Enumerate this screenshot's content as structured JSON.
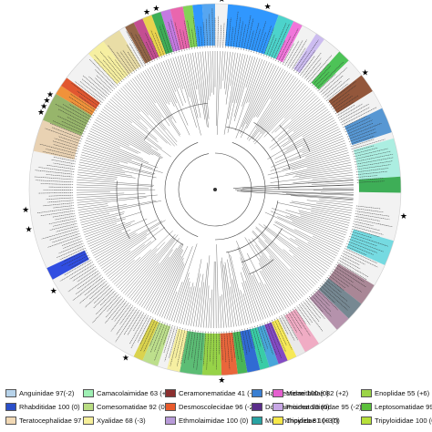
{
  "legend": [
    {
      "label": "Anguinidae 97(-2)",
      "color": "#b7d3ea"
    },
    {
      "label": "Rhabditidae 100 (0)",
      "color": "#2b4fc9"
    },
    {
      "label": "Teratocephalidae 97 (0)",
      "color": "#f2d9b5"
    },
    {
      "label": "Camacolaimidae 63 (+3)",
      "color": "#9ff0b4"
    },
    {
      "label": "Comesomatidae 92 (0)",
      "color": "#b9dd83"
    },
    {
      "label": "Xyalidae 68 (-3)",
      "color": "#f6ef9a"
    },
    {
      "label": "Ceramonematidae 41 (-23)",
      "color": "#8b2f2f"
    },
    {
      "label": "Desmoscolecidae 96 (-2)",
      "color": "#e85a2b"
    },
    {
      "label": "Ethmolaimidae 100 (0)",
      "color": "#b89bd9"
    },
    {
      "label": "Haliplectidae 100 (0)",
      "color": "#3a7fd2"
    },
    {
      "label": "Dorylaimoidea 99 (0)",
      "color": "#5a2d8a"
    },
    {
      "label": "Mononchoidea 81 (+37)",
      "color": "#29a3a3"
    },
    {
      "label": "Mermithidae 82 (+2)",
      "color": "#e55fcf"
    },
    {
      "label": "Prismatolaimidae 95 (-2)",
      "color": "#c8a8e6"
    },
    {
      "label": "Tripylidae 100 (0)",
      "color": "#f7e84a"
    },
    {
      "label": "Enoplidae 55 (+6)",
      "color": "#9bd447"
    },
    {
      "label": "Leptosomatidae 99 (0)",
      "color": "#5cc03c"
    },
    {
      "label": "Tripyloididae 100 (0)",
      "color": "#b7e03a"
    }
  ],
  "ring": {
    "outer_background": "#f2f2f2",
    "clades": [
      {
        "start": 4,
        "end": 20,
        "color": "#1f8fff",
        "family": "Haliplectidae"
      },
      {
        "start": 20,
        "end": 25,
        "color": "#3ed0c8",
        "family": "Mononchoidea"
      },
      {
        "start": 25,
        "end": 28,
        "color": "#f06ad8",
        "family": "Mermithidae"
      },
      {
        "start": 33,
        "end": 36,
        "color": "#c9b7f0",
        "family": "Prismatolaimidae"
      },
      {
        "start": 42,
        "end": 46,
        "color": "#3fbf4a",
        "family": "Leptosomatidae"
      },
      {
        "start": 52,
        "end": 58,
        "color": "#8b4a2b",
        "family": "Ceramonematidae"
      },
      {
        "start": 64,
        "end": 72,
        "color": "#4a8fd0",
        "family": "Haliplectidae"
      },
      {
        "start": 74,
        "end": 86,
        "color": "#a6eee0",
        "family": "Camacolaimidae"
      },
      {
        "start": 86,
        "end": 91,
        "color": "#2fa84a",
        "family": "Leptosomatidae"
      },
      {
        "start": 106,
        "end": 114,
        "color": "#6ad8e0",
        "family": "Mononchoidea"
      },
      {
        "start": 121,
        "end": 128,
        "color": "#a37e8e",
        "family": "Ceramonematidae"
      },
      {
        "start": 128,
        "end": 134,
        "color": "#6b7f8a",
        "family": "Teratocephalidae"
      },
      {
        "start": 134,
        "end": 139,
        "color": "#b08aa6",
        "family": "Ethmolaimidae"
      },
      {
        "start": 146,
        "end": 151,
        "color": "#f0a6c0",
        "family": "Prismatolaimidae"
      },
      {
        "start": 151,
        "end": 154,
        "color": "#e8e8e8",
        "family": "Anguinidae"
      },
      {
        "start": 154,
        "end": 157,
        "color": "#f7e84a",
        "family": "Tripylidae"
      },
      {
        "start": 157,
        "end": 160,
        "color": "#7a3cc0",
        "family": "Dorylaimoidea"
      },
      {
        "start": 160,
        "end": 163,
        "color": "#3aa0d8",
        "family": "Haliplectidae"
      },
      {
        "start": 163,
        "end": 166,
        "color": "#29c9a0",
        "family": "Mononchoidea"
      },
      {
        "start": 166,
        "end": 170,
        "color": "#1f5fd0",
        "family": "Rhabditidae"
      },
      {
        "start": 170,
        "end": 173,
        "color": "#3bb04a",
        "family": "Leptosomatidae"
      },
      {
        "start": 173,
        "end": 178,
        "color": "#e85a2b",
        "family": "Desmoscolecidae"
      },
      {
        "start": 178,
        "end": 184,
        "color": "#8fd03a",
        "family": "Enoplidae"
      },
      {
        "start": 184,
        "end": 191,
        "color": "#4fb86a",
        "family": "Leptosomatidae"
      },
      {
        "start": 191,
        "end": 195,
        "color": "#f6ef9a",
        "family": "Xyalidae"
      },
      {
        "start": 198,
        "end": 203,
        "color": "#b9dd83",
        "family": "Comesomatidae"
      },
      {
        "start": 203,
        "end": 206,
        "color": "#d8d040",
        "family": "Tripyloididae"
      },
      {
        "start": 241,
        "end": 245,
        "color": "#1f3fe0",
        "family": "Rhabditidae"
      },
      {
        "start": 282,
        "end": 292,
        "color": "#e8cfae",
        "family": "Teratocephalidae"
      },
      {
        "start": 292,
        "end": 301,
        "color": "#8fb060",
        "family": "Comesomatidae"
      },
      {
        "start": 301,
        "end": 304,
        "color": "#f08a2a",
        "family": "Desmoscolecidae"
      },
      {
        "start": 304,
        "end": 307,
        "color": "#e04a20",
        "family": "Desmoscolecidae"
      },
      {
        "start": 317,
        "end": 323,
        "color": "#f6ef9a",
        "family": "Xyalidae"
      },
      {
        "start": 323,
        "end": 329,
        "color": "#e8dba0",
        "family": "Xyalidae"
      },
      {
        "start": 331,
        "end": 334,
        "color": "#8b5a3a",
        "family": "Ceramonematidae"
      },
      {
        "start": 334,
        "end": 337,
        "color": "#c0408a",
        "family": "Mermithidae"
      },
      {
        "start": 337,
        "end": 340,
        "color": "#e8d040",
        "family": "Tripylidae"
      },
      {
        "start": 340,
        "end": 343,
        "color": "#2fa84a",
        "family": "Leptosomatidae"
      },
      {
        "start": 343,
        "end": 346,
        "color": "#c070e0",
        "family": "Prismatolaimidae"
      },
      {
        "start": 346,
        "end": 350,
        "color": "#e85aa8",
        "family": "Mermithidae"
      },
      {
        "start": 350,
        "end": 353,
        "color": "#7ad04a",
        "family": "Enoplidae"
      },
      {
        "start": 353,
        "end": 356,
        "color": "#1f8fff",
        "family": "Haliplectidae"
      },
      {
        "start": 356,
        "end": 360,
        "color": "#4aa0f0",
        "family": "Haliplectidae"
      }
    ],
    "stars": [
      2,
      16,
      52,
      98,
      178,
      208,
      238,
      258,
      264,
      294,
      296,
      298,
      300,
      339,
      342
    ]
  }
}
